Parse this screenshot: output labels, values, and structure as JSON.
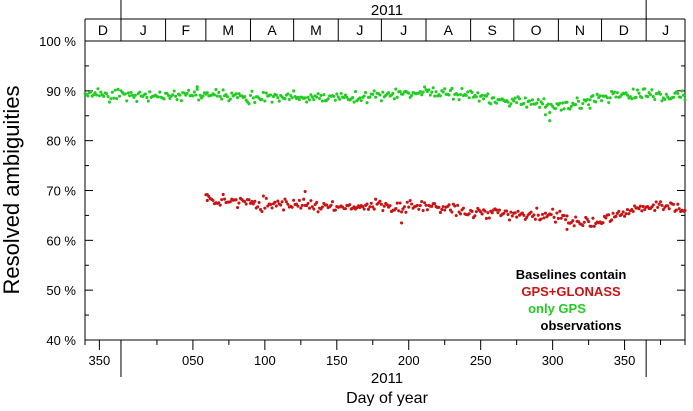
{
  "chart_data": {
    "type": "scatter",
    "xlabel": "Day of year",
    "year_label_top": "2011",
    "year_label_bottom": "2011",
    "ylabel": "Resolved ambiguities",
    "x_range": [
      -25,
      392
    ],
    "ylim": [
      40,
      100
    ],
    "y_ticks": [
      "40 %",
      "50 %",
      "60 %",
      "70 %",
      "80 %",
      "90 %",
      "100 %"
    ],
    "y_tick_values": [
      40,
      50,
      60,
      70,
      80,
      90,
      100
    ],
    "x_ticks": [
      "350",
      "050",
      "100",
      "150",
      "200",
      "250",
      "300",
      "350"
    ],
    "x_tick_values": [
      -15,
      50,
      100,
      150,
      200,
      250,
      300,
      350
    ],
    "x_tick_marks": [
      -25,
      -15,
      0,
      25,
      50,
      75,
      100,
      125,
      150,
      175,
      200,
      225,
      250,
      275,
      300,
      325,
      350,
      375,
      392
    ],
    "months": [
      {
        "label": "D",
        "start": -25,
        "end": 0
      },
      {
        "label": "J",
        "start": 0,
        "end": 31
      },
      {
        "label": "F",
        "start": 31,
        "end": 59
      },
      {
        "label": "M",
        "start": 59,
        "end": 90
      },
      {
        "label": "A",
        "start": 90,
        "end": 120
      },
      {
        "label": "M",
        "start": 120,
        "end": 151
      },
      {
        "label": "J",
        "start": 151,
        "end": 181
      },
      {
        "label": "J",
        "start": 181,
        "end": 212
      },
      {
        "label": "A",
        "start": 212,
        "end": 243
      },
      {
        "label": "S",
        "start": 243,
        "end": 273
      },
      {
        "label": "O",
        "start": 273,
        "end": 304
      },
      {
        "label": "N",
        "start": 304,
        "end": 334
      },
      {
        "label": "D",
        "start": 334,
        "end": 365
      },
      {
        "label": "J",
        "start": 365,
        "end": 392
      }
    ],
    "legend": {
      "title": "Baselines contain",
      "placement": "bottom-right",
      "entries": [
        "GPS+GLONASS",
        "only GPS",
        "observations"
      ]
    },
    "colors": {
      "only_gps": "#22cc22",
      "gps_glonass": "#c81414",
      "text": "#000000"
    },
    "series": [
      {
        "name": "only GPS",
        "x_start": -25,
        "x_end": 392,
        "knots": [
          [
            -25,
            89.5
          ],
          [
            0,
            89.2
          ],
          [
            30,
            88.8
          ],
          [
            60,
            89.3
          ],
          [
            90,
            88.6
          ],
          [
            120,
            89.0
          ],
          [
            150,
            88.4
          ],
          [
            180,
            89.0
          ],
          [
            210,
            89.6
          ],
          [
            240,
            89.3
          ],
          [
            260,
            88.4
          ],
          [
            280,
            87.8
          ],
          [
            300,
            87.0
          ],
          [
            320,
            87.5
          ],
          [
            340,
            88.8
          ],
          [
            360,
            89.3
          ],
          [
            392,
            89.0
          ]
        ],
        "noise": 0.7,
        "outliers": [
          [
            298,
            84.0
          ],
          [
            295,
            85.2
          ],
          [
            53,
            90.8
          ],
          [
            326,
            86.5
          ]
        ]
      },
      {
        "name": "GPS+GLONASS",
        "x_start": 59,
        "x_end": 392,
        "knots": [
          [
            59,
            68.0
          ],
          [
            80,
            67.8
          ],
          [
            100,
            67.3
          ],
          [
            130,
            67.2
          ],
          [
            160,
            66.8
          ],
          [
            190,
            66.9
          ],
          [
            220,
            66.6
          ],
          [
            240,
            65.8
          ],
          [
            260,
            65.3
          ],
          [
            280,
            65.2
          ],
          [
            300,
            64.9
          ],
          [
            320,
            63.2
          ],
          [
            340,
            64.4
          ],
          [
            360,
            66.3
          ],
          [
            380,
            66.8
          ],
          [
            392,
            66.0
          ]
        ],
        "noise": 0.75,
        "outliers": [
          [
            195,
            63.5
          ],
          [
            128,
            69.8
          ],
          [
            60,
            69.2
          ],
          [
            310,
            62.2
          ]
        ]
      }
    ]
  }
}
